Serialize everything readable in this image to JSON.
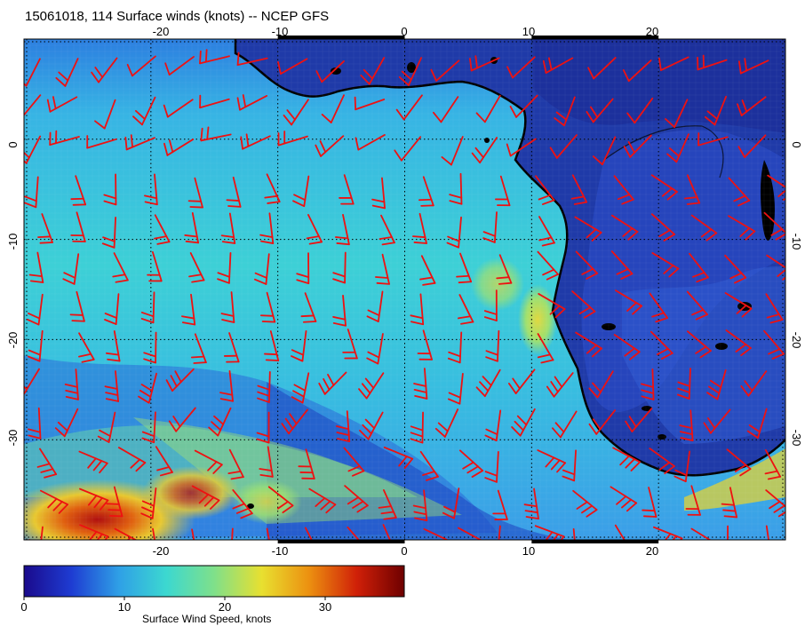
{
  "title": "15061018, 114 Surface winds (knots) -- NCEP GFS",
  "map": {
    "lon_range": [
      -30,
      30
    ],
    "lat_range": [
      -40,
      10
    ],
    "lon_ticks": [
      "-20",
      "-10",
      "0",
      "10",
      "20"
    ],
    "lat_ticks": [
      "0",
      "-10",
      "-20",
      "-30"
    ],
    "barb_color": "#ee1111",
    "grid": true
  },
  "colorbar": {
    "label": "Surface Wind Speed, knots",
    "range": [
      0,
      38
    ],
    "ticks": [
      "0",
      "10",
      "20",
      "30"
    ],
    "colors": [
      "#1a0a8c",
      "#1e3cd2",
      "#2fa0e6",
      "#3cd8d0",
      "#7fe08a",
      "#e8e030",
      "#ec9010",
      "#d02008",
      "#6e0000"
    ]
  }
}
